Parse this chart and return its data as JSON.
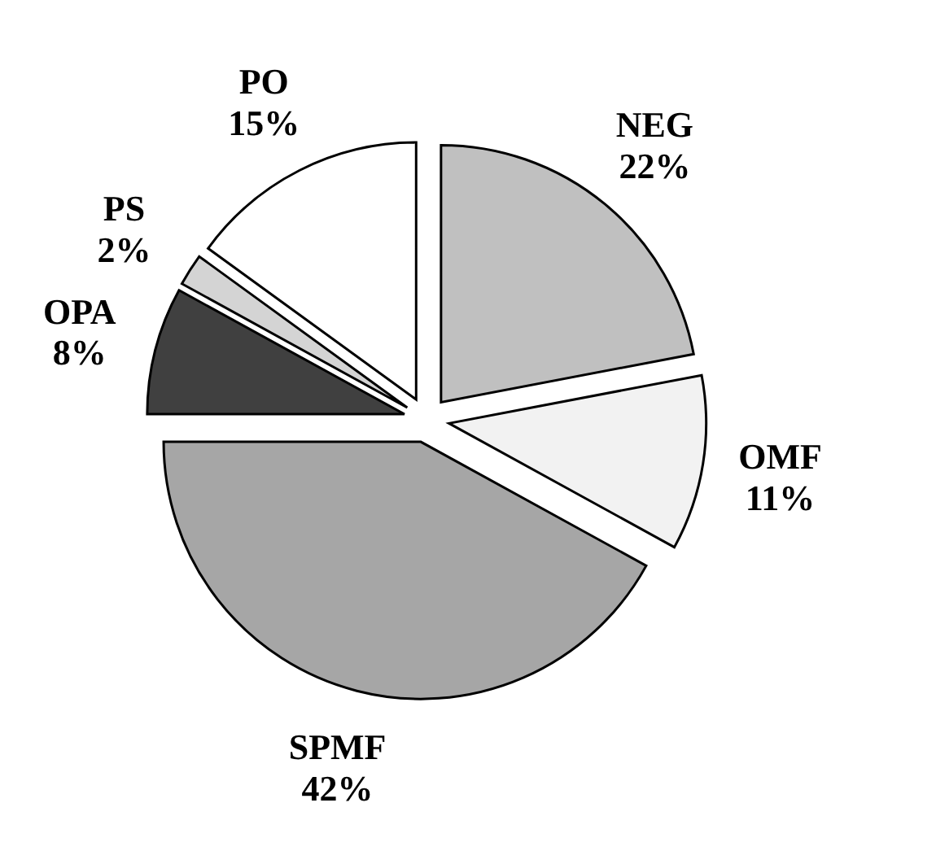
{
  "chart_data": {
    "type": "pie",
    "categories": [
      "NEG",
      "OMF",
      "SPMF",
      "OPA",
      "PS",
      "PO"
    ],
    "values": [
      22,
      11,
      42,
      8,
      2,
      15
    ],
    "value_labels": [
      "22%",
      "11%",
      "42%",
      "8%",
      "2%",
      "15%"
    ],
    "colors": [
      "#c0c0c0",
      "#f2f2f2",
      "#a6a6a6",
      "#404040",
      "#d4d4d4",
      "#ffffff"
    ]
  }
}
